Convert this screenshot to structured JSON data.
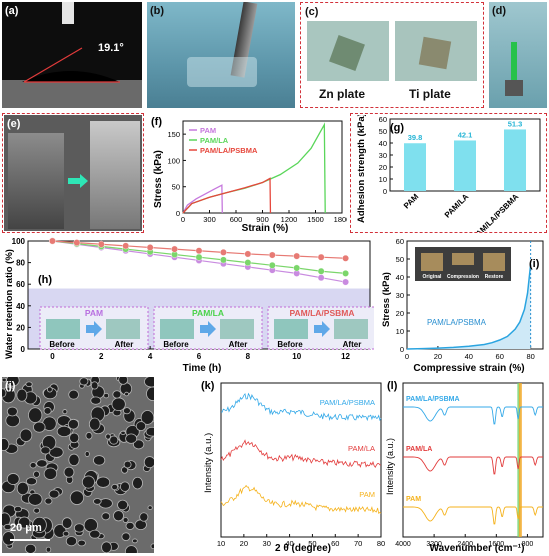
{
  "panels": {
    "a": {
      "label": "(a)",
      "angle_text": "19.1°"
    },
    "b": {
      "label": "(b)"
    },
    "c": {
      "label": "(c)",
      "left_text": "Zn plate",
      "right_text": "Ti plate"
    },
    "d": {
      "label": "(d)"
    },
    "e": {
      "label": "(e)"
    },
    "f": {
      "label": "(f)"
    },
    "g": {
      "label": "(g)"
    },
    "h": {
      "label": "(h)",
      "insets": [
        {
          "title": "PAM",
          "before": "Before",
          "after": "After"
        },
        {
          "title": "PAM/LA",
          "before": "Before",
          "after": "After"
        },
        {
          "title": "PAM/LA/PSBMA",
          "before": "Before",
          "after": "After"
        }
      ]
    },
    "i": {
      "label": "(i)",
      "inset_labels": [
        "Original",
        "Compression",
        "Restore"
      ],
      "curve_label": "PAM/LA/PSBMA"
    },
    "j": {
      "label": "(j)",
      "scale_text": "20 μm"
    },
    "k": {
      "label": "(k)"
    },
    "l": {
      "label": "(l)"
    }
  },
  "chart_data": [
    {
      "id": "f",
      "type": "line",
      "xlabel": "Strain (%)",
      "ylabel": "Stress (kPa)",
      "xlim": [
        0,
        1800
      ],
      "ylim": [
        0,
        175
      ],
      "xticks": [
        "0",
        "300",
        "600",
        "900",
        "1200",
        "1500",
        "1800"
      ],
      "yticks": [
        "0",
        "50",
        "100",
        "150"
      ],
      "legend_position": "top-left",
      "series": [
        {
          "name": "PAM",
          "color": "#c678dd",
          "x": [
            0,
            50,
            150,
            250,
            350,
            440,
            445
          ],
          "y": [
            0,
            15,
            27,
            36,
            45,
            53,
            0
          ]
        },
        {
          "name": "PAM/LA",
          "color": "#5ad65a",
          "x": [
            0,
            100,
            300,
            500,
            700,
            900,
            1100,
            1300,
            1450,
            1600,
            1610
          ],
          "y": [
            0,
            18,
            30,
            39,
            47,
            58,
            73,
            95,
            123,
            168,
            0
          ]
        },
        {
          "name": "PAM/LA/PSBMA",
          "color": "#e6473c",
          "x": [
            0,
            100,
            300,
            500,
            700,
            900,
            985,
            990
          ],
          "y": [
            0,
            18,
            30,
            39,
            48,
            58,
            66,
            0
          ]
        }
      ]
    },
    {
      "id": "g",
      "type": "bar",
      "ylabel": "Adhesion strength (kPa)",
      "ylim": [
        0,
        60
      ],
      "yticks": [
        "0",
        "10",
        "20",
        "30",
        "40",
        "50",
        "60"
      ],
      "categories": [
        "PAM",
        "PAM/LA",
        "PAM/LA/PSBMA"
      ],
      "values": [
        39.8,
        42.1,
        51.3
      ],
      "value_labels": [
        "39.8",
        "42.1",
        "51.3"
      ],
      "color": "#7fe0ee"
    },
    {
      "id": "h",
      "type": "line",
      "xlabel": "Time (h)",
      "ylabel": "Water retention ratio (%)",
      "xlim": [
        -1,
        13
      ],
      "ylim": [
        0,
        100
      ],
      "xticks": [
        "0",
        "2",
        "4",
        "6",
        "8",
        "10",
        "12"
      ],
      "yticks": [
        "0",
        "20",
        "40",
        "60",
        "80",
        "100"
      ],
      "x": [
        0,
        1,
        2,
        3,
        4,
        5,
        6,
        7,
        8,
        9,
        10,
        11,
        12
      ],
      "series": [
        {
          "name": "PAM",
          "color": "#c98be0",
          "values": [
            100,
            97,
            94,
            91,
            88,
            85,
            82,
            79,
            76,
            73,
            70,
            66,
            62
          ]
        },
        {
          "name": "PAM/LA",
          "color": "#7bd66b",
          "values": [
            100,
            97.5,
            95,
            92.5,
            90,
            87.5,
            85,
            82.5,
            80,
            77.5,
            75,
            72,
            70
          ]
        },
        {
          "name": "PAM/LA/PSBMA",
          "color": "#e77a74",
          "values": [
            100,
            98.5,
            97,
            95.5,
            94,
            92.5,
            91,
            89.5,
            88,
            87,
            86,
            85,
            84
          ]
        }
      ]
    },
    {
      "id": "i",
      "type": "line",
      "xlabel": "Compressive strain (%)",
      "ylabel": "Stress (kPa)",
      "xlim": [
        0,
        88
      ],
      "ylim": [
        0,
        60
      ],
      "xticks": [
        "0",
        "20",
        "40",
        "60",
        "80"
      ],
      "yticks": [
        "0",
        "10",
        "20",
        "30",
        "40",
        "50",
        "60"
      ],
      "series": [
        {
          "name": "PAM/LA/PSBMA",
          "color": "#2aa4e0",
          "x": [
            0,
            10,
            20,
            30,
            40,
            50,
            55,
            60,
            65,
            70,
            73,
            76,
            78,
            80
          ],
          "y": [
            0,
            0.2,
            0.5,
            0.9,
            1.5,
            2.5,
            3.5,
            5,
            7,
            11,
            15,
            22,
            31,
            47
          ]
        }
      ],
      "vline": 80
    },
    {
      "id": "k",
      "type": "line",
      "xlabel": "2 θ (degree)",
      "ylabel": "Intensity (a.u.)",
      "xlim": [
        10,
        80
      ],
      "xticks": [
        "10",
        "20",
        "30",
        "40",
        "50",
        "60",
        "70",
        "80"
      ],
      "series": [
        {
          "name": "PAM/LA/PSBMA",
          "color": "#34a9e8"
        },
        {
          "name": "PAM/LA",
          "color": "#e23b3b"
        },
        {
          "name": "PAM",
          "color": "#f5b21b"
        }
      ]
    },
    {
      "id": "l",
      "type": "line",
      "xlabel": "Wavenumber (cm⁻¹)",
      "ylabel": "Intensity (a.u.)",
      "xticks": [
        "4000",
        "3200",
        "2400",
        "1600",
        "800"
      ],
      "series": [
        {
          "name": "PAM/LA/PSBMA",
          "color": "#34a9e8"
        },
        {
          "name": "PAM/LA",
          "color": "#e23b3b"
        },
        {
          "name": "PAM",
          "color": "#f5b21b"
        }
      ]
    }
  ]
}
